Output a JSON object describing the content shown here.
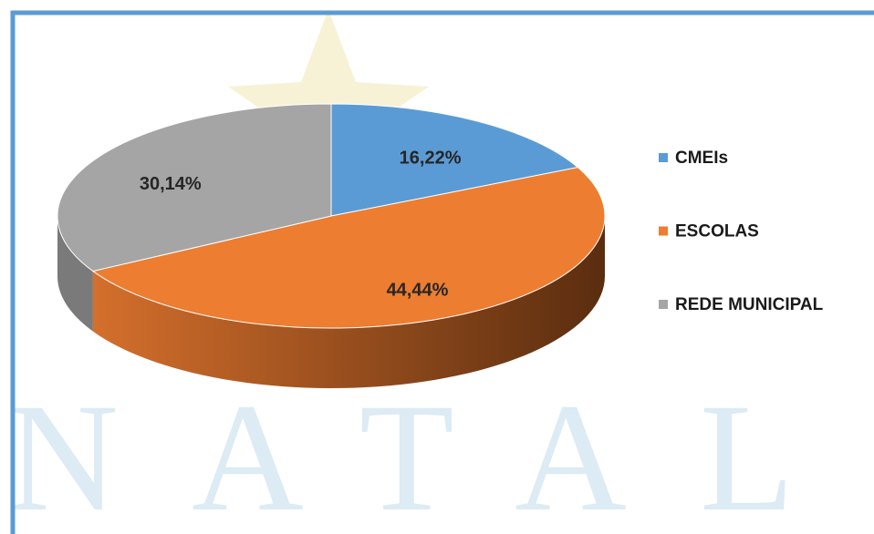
{
  "chart_data": {
    "type": "pie3d",
    "watermark": "NATAL",
    "categories": [
      "CMEIs",
      "ESCOLAS",
      "REDE MUNICIPAL"
    ],
    "values": [
      16.22,
      44.44,
      30.14
    ],
    "value_labels": [
      "16,22%",
      "44,44%",
      "30,14%"
    ],
    "colors": [
      "#5b9bd5",
      "#ed7d31",
      "#a5a5a5"
    ],
    "legend": "right"
  }
}
